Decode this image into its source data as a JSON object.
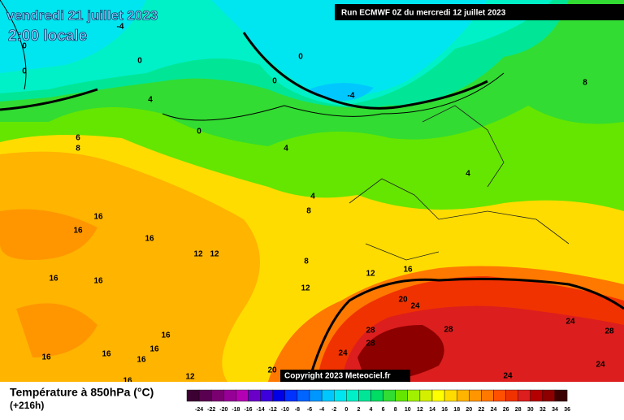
{
  "header": {
    "date": "vendredi 21 juillet 2023",
    "time": "2:00 locale",
    "run": "Run ECMWF 0Z du mercredi 12 juillet 2023"
  },
  "copyright": "Copyright 2023 Meteociel.fr",
  "legend": {
    "title": "Température à 850hPa (°C)",
    "lead": "(+216h)",
    "labels": [
      "-24",
      "-22",
      "-20",
      "-18",
      "-16",
      "-14",
      "-12",
      "-10",
      "-8",
      "-6",
      "-4",
      "-2",
      "0",
      "2",
      "4",
      "6",
      "8",
      "10",
      "12",
      "14",
      "16",
      "18",
      "20",
      "22",
      "24",
      "26",
      "28",
      "30",
      "32",
      "34",
      "36"
    ],
    "colors": [
      "#3d0033",
      "#5a0050",
      "#7a0070",
      "#960096",
      "#b400b4",
      "#6a00c8",
      "#3c00dc",
      "#0000e6",
      "#0032ff",
      "#0064ff",
      "#0096ff",
      "#00c8ff",
      "#00e6f0",
      "#00f0c8",
      "#00e696",
      "#00dc64",
      "#32dc32",
      "#64e600",
      "#a0f000",
      "#d2f000",
      "#ffff00",
      "#ffdc00",
      "#ffb400",
      "#ff9600",
      "#ff7800",
      "#ff5000",
      "#f03200",
      "#dc1e1e",
      "#b40000",
      "#8c0000",
      "#3c0000"
    ]
  },
  "map": {
    "contour_labels": [
      "-4",
      "0",
      "0",
      "0",
      "0",
      "0",
      "-4",
      "4",
      "0",
      "8",
      "6",
      "8",
      "4",
      "4",
      "4",
      "8",
      "16",
      "16",
      "16",
      "12",
      "12",
      "8",
      "16",
      "12",
      "16",
      "16",
      "12",
      "20",
      "24",
      "28",
      "28",
      "28",
      "24",
      "28",
      "16",
      "24",
      "16",
      "16",
      "16",
      "16",
      "24",
      "20",
      "12",
      "16",
      "24"
    ]
  }
}
